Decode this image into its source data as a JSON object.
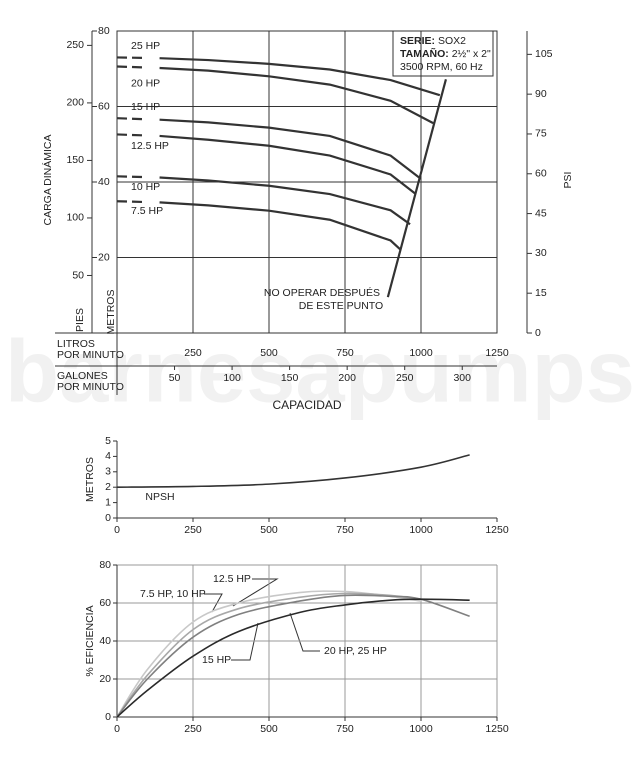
{
  "watermark": "barnesapumps",
  "chart_data": [
    {
      "type": "line",
      "info": {
        "serie_label": "SERIE:",
        "serie": "SOX2",
        "tamano_label": "TAMAÑO:",
        "tamano": "2½\" x 2\"",
        "speed": "3500 RPM, 60 Hz"
      },
      "ylabel": "CARGA DINÁMICA",
      "y_feet_label": "PIES",
      "y_meters_label": "METROS",
      "y2label": "PSI",
      "xlabel": "CAPACIDAD",
      "x_lpm_label": [
        "LITROS",
        "POR MINUTO"
      ],
      "x_gpm_label": [
        "GALONES",
        "POR MINUTO"
      ],
      "xlim": [
        0,
        1250
      ],
      "xticks": [
        250,
        500,
        750,
        1000,
        1250
      ],
      "x2lim": [
        0,
        330.2
      ],
      "x2ticks": [
        50,
        100,
        150,
        200,
        250,
        300
      ],
      "ylim": [
        0,
        80
      ],
      "yticks": [
        20,
        40,
        60,
        80
      ],
      "y_feet_lim": [
        0,
        262.5
      ],
      "y_feet_ticks": [
        50,
        100,
        150,
        200,
        250
      ],
      "y2lim": [
        0,
        113.8
      ],
      "y2ticks": [
        0,
        15,
        30,
        45,
        60,
        75,
        90,
        105
      ],
      "grid": true,
      "series": [
        {
          "name": "25 HP",
          "color": "#333333",
          "x": [
            0,
            140,
            300,
            500,
            700,
            900,
            1062
          ],
          "values": [
            73,
            72.8,
            72.3,
            71.3,
            69.8,
            67,
            63
          ]
        },
        {
          "name": "20 HP",
          "color": "#333333",
          "x": [
            0,
            140,
            300,
            500,
            700,
            900,
            1040
          ],
          "values": [
            70.6,
            70.2,
            69.5,
            68,
            65.8,
            61.5,
            55.6
          ]
        },
        {
          "name": "15 HP",
          "color": "#333333",
          "x": [
            0,
            140,
            300,
            500,
            700,
            900,
            997
          ],
          "values": [
            56.9,
            56.5,
            55.8,
            54.4,
            52.2,
            47,
            41
          ]
        },
        {
          "name": "12.5 HP",
          "color": "#333333",
          "x": [
            0,
            140,
            300,
            500,
            700,
            900,
            980
          ],
          "values": [
            52.6,
            52.2,
            51.2,
            49.6,
            47,
            42,
            37
          ]
        },
        {
          "name": "10 HP",
          "color": "#333333",
          "x": [
            0,
            140,
            300,
            500,
            700,
            900,
            964
          ],
          "values": [
            41.5,
            41.2,
            40.4,
            39,
            36.8,
            32.5,
            28.8
          ]
        },
        {
          "name": "7.5 HP",
          "color": "#333333",
          "x": [
            0,
            140,
            300,
            500,
            700,
            900,
            931
          ],
          "values": [
            34.9,
            34.6,
            33.8,
            32.4,
            30,
            24.5,
            22.2
          ]
        }
      ],
      "limit_line": {
        "x": [
          891,
          1082
        ],
        "values": [
          9.5,
          67.2
        ]
      },
      "annotation": [
        "NO OPERAR DESPUÉS",
        "DE ESTE PUNTO"
      ]
    },
    {
      "type": "line",
      "ylabel": "METROS",
      "xlim": [
        0,
        1250
      ],
      "xticks": [
        0,
        250,
        500,
        750,
        1000,
        1250
      ],
      "ylim": [
        0,
        5
      ],
      "yticks": [
        0,
        1,
        2,
        3,
        4,
        5
      ],
      "grid": false,
      "series": [
        {
          "name": "NPSH",
          "color": "#333333",
          "x": [
            0,
            250,
            500,
            750,
            1000,
            1160
          ],
          "values": [
            2,
            2.05,
            2.2,
            2.6,
            3.3,
            4.1
          ]
        }
      ]
    },
    {
      "type": "line",
      "ylabel": "% EFICIENCIA",
      "xlim": [
        0,
        1250
      ],
      "xticks": [
        0,
        250,
        500,
        750,
        1000,
        1250
      ],
      "ylim": [
        0,
        80
      ],
      "yticks": [
        0,
        20,
        40,
        60,
        80
      ],
      "grid": true,
      "series": [
        {
          "name": "7.5 HP, 10 HP",
          "color": "#c8c8c8",
          "x": [
            0,
            100,
            250,
            400,
            600,
            750,
            900,
            1000
          ],
          "values": [
            0,
            25,
            50,
            60,
            65.5,
            66,
            63.5,
            61
          ]
        },
        {
          "name": "12.5 HP",
          "color": "#a8a8a8",
          "x": [
            0,
            100,
            250,
            400,
            600,
            750,
            900,
            1000
          ],
          "values": [
            0,
            22,
            46,
            57,
            63,
            65,
            64,
            62
          ]
        },
        {
          "name": "15 HP",
          "color": "#808080",
          "x": [
            0,
            100,
            250,
            400,
            600,
            750,
            900,
            1000,
            1160
          ],
          "values": [
            0,
            20,
            42,
            54,
            61,
            64,
            63.5,
            62,
            53
          ]
        },
        {
          "name": "20 HP, 25 HP",
          "color": "#2a2a2a",
          "x": [
            0,
            100,
            250,
            400,
            600,
            750,
            900,
            1000,
            1160
          ],
          "values": [
            0,
            14,
            32,
            45,
            55,
            59,
            61.5,
            62,
            61.5
          ]
        }
      ]
    }
  ]
}
